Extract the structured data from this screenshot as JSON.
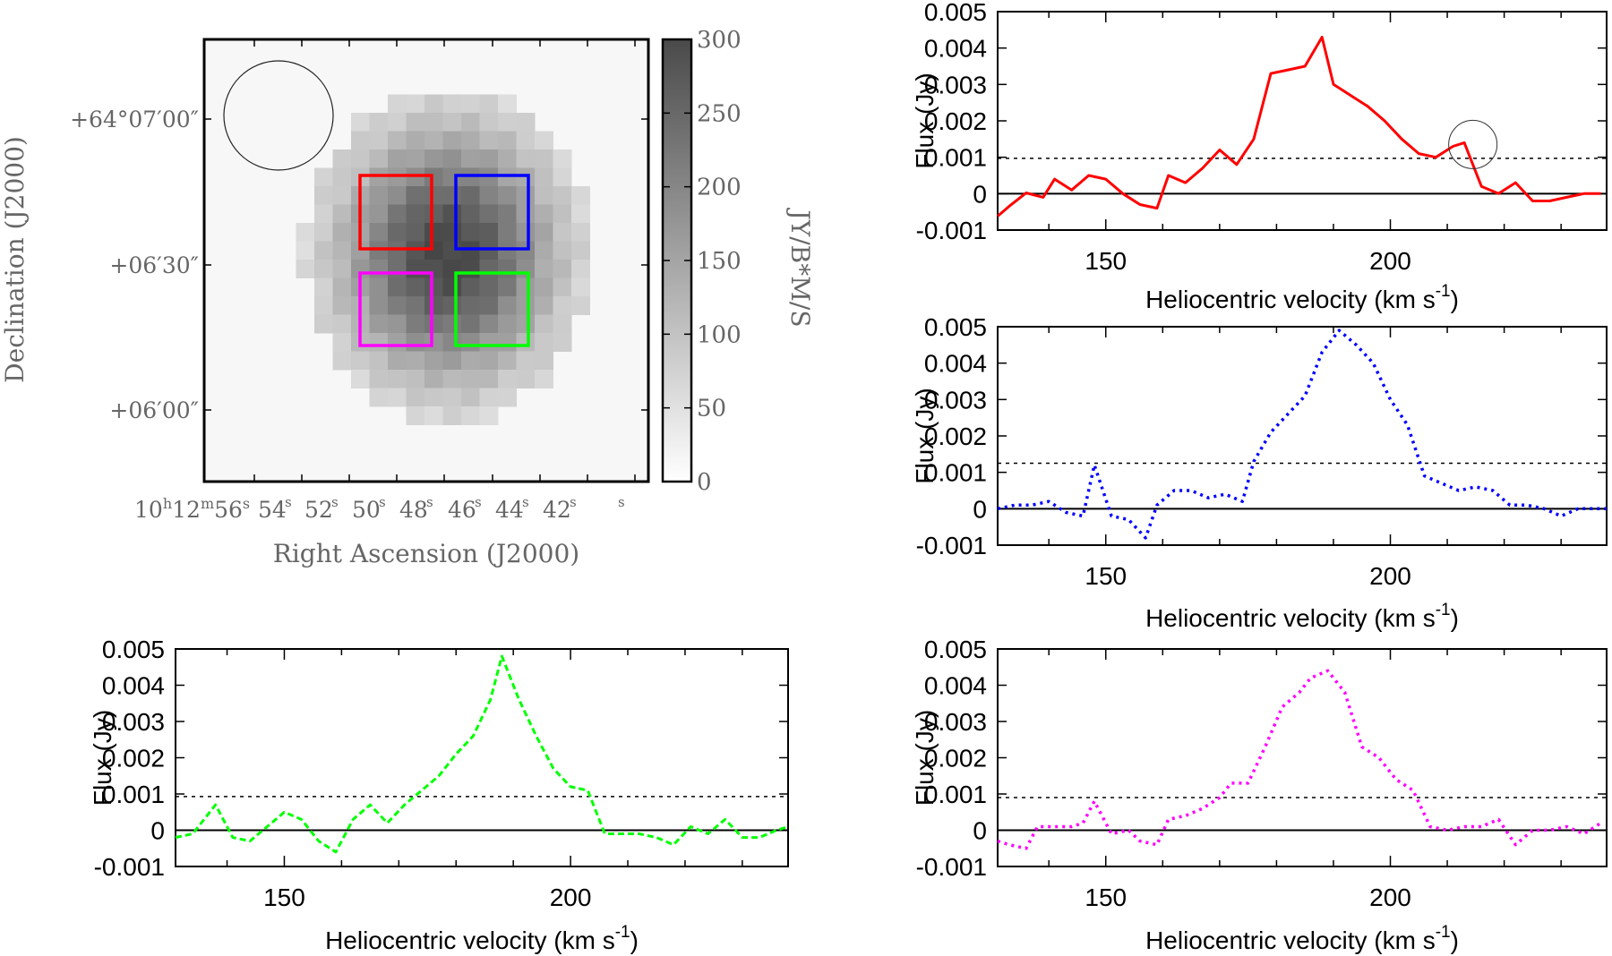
{
  "image_panel": {
    "xlabel": "Right Ascension (J2000)",
    "ylabel": "Declination (J2000)",
    "colorbar_label": "JY/B*M/S",
    "colorbar_ticks": [
      "0",
      "50",
      "100",
      "150",
      "200",
      "250",
      "300"
    ],
    "colorbar_range": [
      0,
      300
    ],
    "ra_ticks": [
      {
        "h": "10",
        "m": "12",
        "s": "56",
        "label": "56"
      },
      {
        "label": "54"
      },
      {
        "label": "52"
      },
      {
        "label": "50"
      },
      {
        "label": "48"
      },
      {
        "label": "46"
      },
      {
        "label": "44"
      },
      {
        "label": "42"
      }
    ],
    "dec_ticks": [
      "+64°07′00″",
      "+06′30″",
      "+06′00″"
    ],
    "box_colors": {
      "red": "#ff0000",
      "blue": "#0000ff",
      "magenta": "#ff00ff",
      "green": "#00ff00"
    }
  },
  "chart_data": [
    {
      "type": "line",
      "panel": "top-right",
      "line_style": "solid",
      "color": "#ff0000",
      "xlabel": "Heliocentric velocity (km s-1)",
      "ylabel": "Flux (Jy)",
      "xlim": [
        131,
        238
      ],
      "ylim": [
        -0.001,
        0.005
      ],
      "xticks": [
        150,
        200
      ],
      "yticks": [
        -0.001,
        0,
        0.001,
        0.002,
        0.003,
        0.004,
        0.005
      ],
      "ytick_labels": [
        "-0.001",
        "0",
        "0.001",
        "0.002",
        "0.003",
        "0.004",
        "0.005"
      ],
      "threshold": 0.00097,
      "annotation": "circle at ~215 km/s",
      "x": [
        131,
        133,
        136,
        139,
        141,
        144,
        147,
        150,
        153,
        156,
        159,
        161,
        164,
        167,
        170,
        173,
        176,
        179,
        182,
        185,
        188,
        190,
        193,
        196,
        199,
        202,
        205,
        208,
        211,
        213,
        216,
        219,
        222,
        225,
        228,
        231,
        234,
        237
      ],
      "values": [
        -0.00062,
        -0.00035,
        2e-05,
        -0.0001,
        0.0004,
        0.0001,
        0.0005,
        0.0004,
        0.0,
        -0.0003,
        -0.0004,
        0.0005,
        0.0003,
        0.0007,
        0.0012,
        0.0008,
        0.0015,
        0.0033,
        0.0034,
        0.0035,
        0.0043,
        0.003,
        0.0027,
        0.0024,
        0.002,
        0.0015,
        0.0011,
        0.001,
        0.0013,
        0.0014,
        0.0002,
        0.0,
        0.0003,
        -0.0002,
        -0.0002,
        -0.0001,
        0.0,
        0.0
      ]
    },
    {
      "type": "line",
      "panel": "middle-right",
      "line_style": "dotted",
      "color": "#0000ff",
      "xlabel": "Heliocentric velocity (km s-1)",
      "ylabel": "Flux (Jy)",
      "xlim": [
        131,
        238
      ],
      "ylim": [
        -0.001,
        0.005
      ],
      "xticks": [
        150,
        200
      ],
      "yticks": [
        -0.001,
        0,
        0.001,
        0.002,
        0.003,
        0.004,
        0.005
      ],
      "ytick_labels": [
        "-0.001",
        "0",
        "0.001",
        "0.002",
        "0.003",
        "0.004",
        "0.005"
      ],
      "threshold": 0.00125,
      "x": [
        131,
        134,
        137,
        140,
        143,
        146,
        148,
        151,
        154,
        157,
        159,
        162,
        165,
        168,
        171,
        174,
        176,
        179,
        182,
        185,
        188,
        191,
        194,
        197,
        200,
        203,
        206,
        209,
        212,
        215,
        218,
        221,
        224,
        227,
        230,
        233,
        236,
        238
      ],
      "values": [
        0.0,
        0.0001,
        0.0001,
        0.0002,
        -0.0001,
        -0.0002,
        0.0012,
        -0.0002,
        -0.0003,
        -0.0008,
        0.0001,
        0.0005,
        0.0005,
        0.0003,
        0.0004,
        0.0002,
        0.0013,
        0.0021,
        0.0026,
        0.0031,
        0.0043,
        0.0049,
        0.0045,
        0.004,
        0.003,
        0.0023,
        0.0009,
        0.0007,
        0.0005,
        0.0006,
        0.0005,
        0.0001,
        0.0001,
        0.0,
        -0.0002,
        0.0,
        0.0,
        0.0
      ]
    },
    {
      "type": "line",
      "panel": "bottom-left",
      "line_style": "dashed",
      "color": "#00ff00",
      "xlabel": "Heliocentric velocity (km s-1)",
      "ylabel": "Flux (Jy)",
      "xlim": [
        131,
        238
      ],
      "ylim": [
        -0.001,
        0.005
      ],
      "xticks": [
        150,
        200
      ],
      "yticks": [
        -0.001,
        0,
        0.001,
        0.002,
        0.003,
        0.004,
        0.005
      ],
      "ytick_labels": [
        "-0.001",
        "0",
        "0.001",
        "0.002",
        "0.003",
        "0.004",
        "0.005"
      ],
      "threshold": 0.00093,
      "x": [
        131,
        134,
        138,
        141,
        144,
        147,
        150,
        153,
        156,
        159,
        162,
        165,
        168,
        171,
        174,
        177,
        180,
        183,
        186,
        188,
        191,
        194,
        197,
        200,
        203,
        206,
        209,
        212,
        215,
        218,
        221,
        224,
        227,
        230,
        233,
        236,
        238
      ],
      "values": [
        -0.0002,
        -0.0001,
        0.0007,
        -0.0002,
        -0.0003,
        0.0001,
        0.0005,
        0.0003,
        -0.0003,
        -0.0006,
        0.0003,
        0.0007,
        0.0002,
        0.0007,
        0.0011,
        0.0015,
        0.0021,
        0.0026,
        0.0036,
        0.0048,
        0.0036,
        0.0026,
        0.0017,
        0.0012,
        0.0011,
        -0.0001,
        -0.0001,
        -0.0001,
        -0.0002,
        -0.0004,
        0.0001,
        -0.0001,
        0.0003,
        -0.0002,
        -0.0002,
        0.0,
        0.0001
      ]
    },
    {
      "type": "line",
      "panel": "bottom-right",
      "line_style": "dotted",
      "color": "#ff00ff",
      "xlabel": "Heliocentric velocity (km s-1)",
      "ylabel": "Flux (Jy)",
      "xlim": [
        131,
        238
      ],
      "ylim": [
        -0.001,
        0.005
      ],
      "xticks": [
        150,
        200
      ],
      "yticks": [
        -0.001,
        0,
        0.001,
        0.002,
        0.003,
        0.004,
        0.005
      ],
      "ytick_labels": [
        "-0.001",
        "0",
        "0.001",
        "0.002",
        "0.003",
        "0.004",
        "0.005"
      ],
      "threshold": 0.0009,
      "x": [
        131,
        133,
        136,
        138,
        141,
        144,
        146,
        148,
        151,
        154,
        156,
        159,
        161,
        164,
        167,
        170,
        172,
        175,
        178,
        181,
        184,
        186,
        189,
        192,
        195,
        198,
        201,
        204,
        207,
        210,
        213,
        216,
        219,
        222,
        225,
        228,
        231,
        234,
        237
      ],
      "values": [
        -0.0003,
        -0.0004,
        -0.0005,
        0.0001,
        0.0001,
        0.0001,
        0.0002,
        0.0008,
        -0.0001,
        0.0,
        -0.0003,
        -0.0004,
        0.0003,
        0.0004,
        0.0006,
        0.0009,
        0.0013,
        0.0013,
        0.0023,
        0.0034,
        0.0038,
        0.0042,
        0.0044,
        0.0038,
        0.0023,
        0.002,
        0.0014,
        0.0011,
        0.0001,
        0.0,
        0.0001,
        0.0001,
        0.0003,
        -0.0004,
        0.0,
        0.0,
        0.0001,
        -0.0001,
        0.0002
      ]
    }
  ]
}
